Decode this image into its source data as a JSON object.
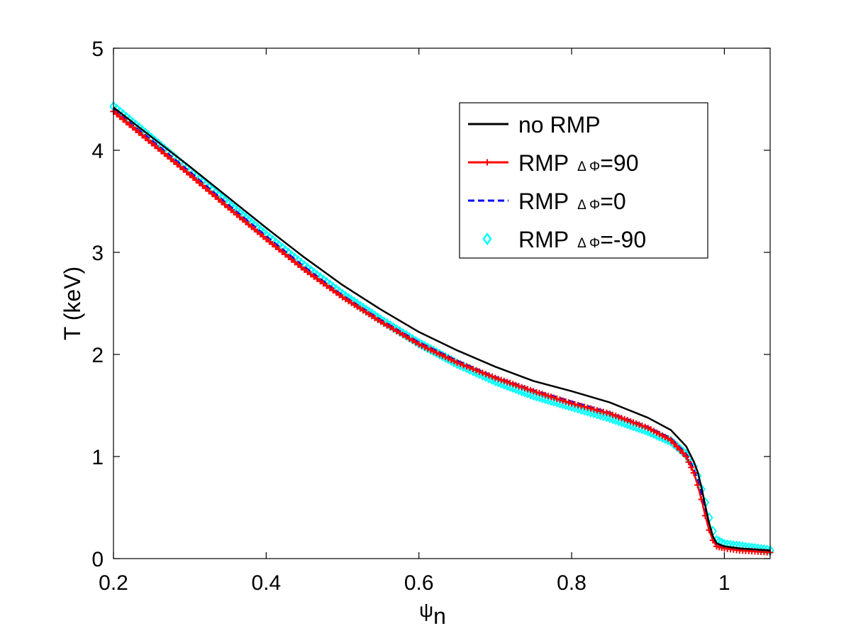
{
  "chart_data": {
    "type": "line",
    "title": "",
    "xlabel": "ψ",
    "xlabel_subscript": "n",
    "ylabel": "T (keV)",
    "xlim": [
      0.2,
      1.06
    ],
    "ylim": [
      0,
      5
    ],
    "xticks": [
      0.2,
      0.4,
      0.6,
      0.8,
      1
    ],
    "xtick_labels": [
      "0.2",
      "0.4",
      "0.6",
      "0.8",
      "1"
    ],
    "yticks": [
      0,
      1,
      2,
      3,
      4,
      5
    ],
    "ytick_labels": [
      "0",
      "1",
      "2",
      "3",
      "4",
      "5"
    ],
    "grid": false,
    "legend_position": "top-right",
    "series": [
      {
        "name": "no RMP",
        "legend_prefix": "RMP",
        "color": "#000000",
        "style": "solid",
        "marker": "none",
        "x": [
          0.2,
          0.25,
          0.3,
          0.35,
          0.4,
          0.45,
          0.5,
          0.55,
          0.6,
          0.65,
          0.7,
          0.75,
          0.8,
          0.85,
          0.9,
          0.93,
          0.95,
          0.96,
          0.965,
          0.97,
          0.975,
          0.98,
          0.985,
          0.99,
          1.0,
          1.02,
          1.04,
          1.06
        ],
        "y": [
          4.42,
          4.13,
          3.84,
          3.54,
          3.24,
          2.95,
          2.68,
          2.44,
          2.22,
          2.04,
          1.88,
          1.74,
          1.64,
          1.53,
          1.38,
          1.26,
          1.1,
          0.95,
          0.85,
          0.7,
          0.52,
          0.35,
          0.22,
          0.15,
          0.12,
          0.1,
          0.09,
          0.08
        ]
      },
      {
        "name": "=90",
        "legend_prefix": "RMP",
        "legend_symbol": "Δ Φ",
        "color": "#ff0000",
        "style": "solid",
        "marker": "plus",
        "x": [
          0.2,
          0.25,
          0.3,
          0.35,
          0.4,
          0.45,
          0.5,
          0.55,
          0.6,
          0.65,
          0.7,
          0.75,
          0.8,
          0.85,
          0.9,
          0.93,
          0.95,
          0.96,
          0.965,
          0.97,
          0.975,
          0.98,
          0.985,
          0.99,
          1.0,
          1.02,
          1.04,
          1.06
        ],
        "y": [
          4.38,
          4.07,
          3.76,
          3.44,
          3.13,
          2.83,
          2.56,
          2.32,
          2.1,
          1.92,
          1.77,
          1.64,
          1.52,
          1.42,
          1.28,
          1.16,
          1.0,
          0.84,
          0.72,
          0.58,
          0.42,
          0.28,
          0.18,
          0.12,
          0.1,
          0.08,
          0.07,
          0.06
        ]
      },
      {
        "name": "=0",
        "legend_prefix": "RMP",
        "legend_symbol": "Δ Φ",
        "color": "#0000ff",
        "style": "dashed",
        "marker": "none",
        "x": [
          0.2,
          0.25,
          0.3,
          0.35,
          0.4,
          0.45,
          0.5,
          0.55,
          0.6,
          0.65,
          0.7,
          0.75,
          0.8,
          0.85,
          0.9,
          0.93,
          0.95,
          0.96,
          0.965,
          0.97,
          0.975,
          0.98,
          0.985,
          0.99,
          1.0,
          1.02,
          1.04,
          1.06
        ],
        "y": [
          4.4,
          4.1,
          3.79,
          3.47,
          3.16,
          2.86,
          2.58,
          2.34,
          2.12,
          1.94,
          1.78,
          1.65,
          1.54,
          1.43,
          1.29,
          1.18,
          1.03,
          0.88,
          0.77,
          0.63,
          0.47,
          0.32,
          0.2,
          0.14,
          0.11,
          0.09,
          0.08,
          0.07
        ]
      },
      {
        "name": "=-90",
        "legend_prefix": "RMP",
        "legend_symbol": "Δ Φ",
        "color": "#00ffff",
        "style": "none",
        "marker": "diamond",
        "x": [
          0.2,
          0.25,
          0.3,
          0.35,
          0.4,
          0.45,
          0.5,
          0.55,
          0.6,
          0.65,
          0.7,
          0.75,
          0.8,
          0.85,
          0.9,
          0.93,
          0.95,
          0.96,
          0.965,
          0.97,
          0.975,
          0.98,
          0.985,
          0.99,
          1.0,
          1.02,
          1.04,
          1.06
        ],
        "y": [
          4.43,
          4.12,
          3.8,
          3.48,
          3.17,
          2.87,
          2.59,
          2.34,
          2.11,
          1.91,
          1.74,
          1.6,
          1.49,
          1.38,
          1.25,
          1.15,
          1.02,
          0.9,
          0.81,
          0.68,
          0.55,
          0.4,
          0.27,
          0.18,
          0.14,
          0.12,
          0.1,
          0.08
        ]
      }
    ]
  }
}
